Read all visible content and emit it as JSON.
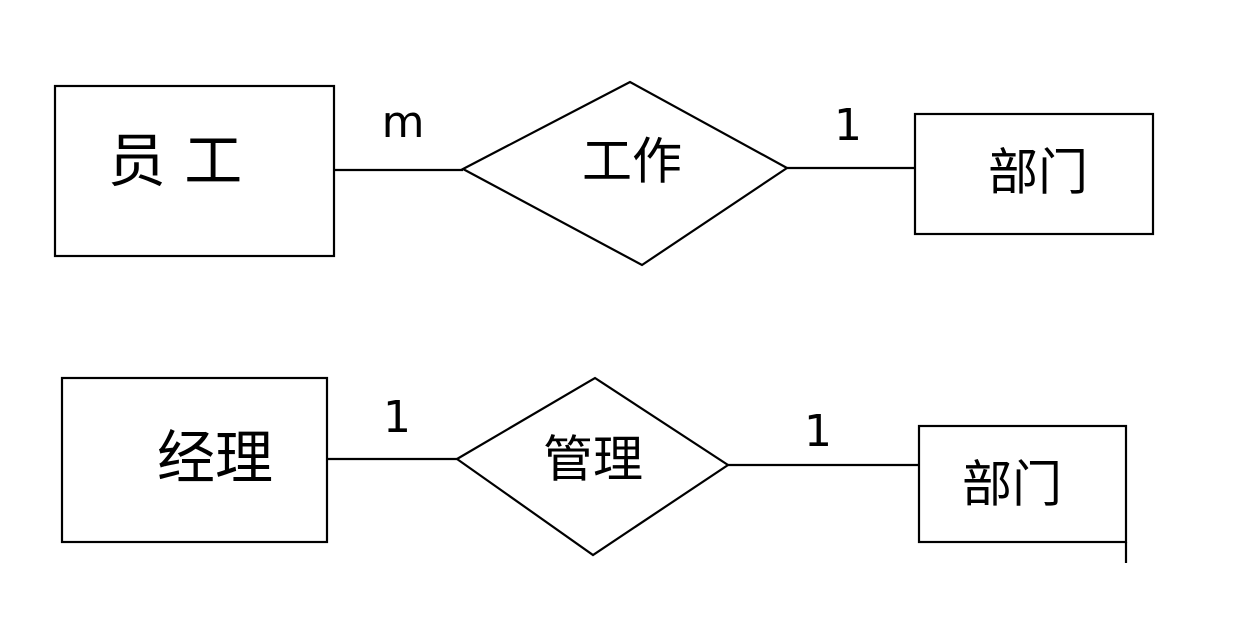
{
  "diagram": {
    "row1": {
      "entity_left": "员 工",
      "relationship": "工作",
      "entity_right": "部门",
      "card_left": "m",
      "card_right": "1"
    },
    "row2": {
      "entity_left": "经理",
      "relationship": "管理",
      "entity_right": "部门",
      "card_left": "1",
      "card_right": "1"
    }
  }
}
